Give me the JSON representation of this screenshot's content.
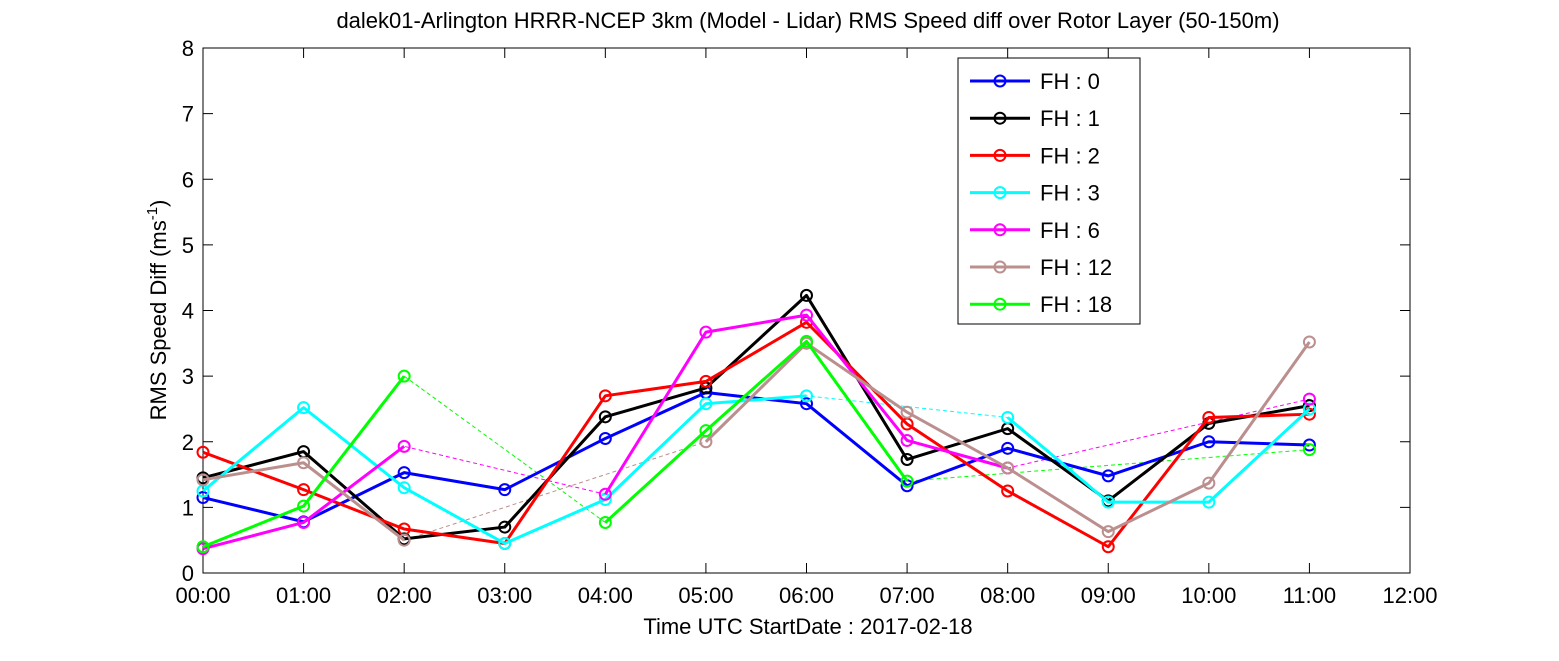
{
  "chart_data": {
    "type": "line",
    "title": "dalek01-Arlington HRRR-NCEP 3km (Model - Lidar) RMS Speed diff over Rotor Layer (50-150m)",
    "xlabel": "Time UTC    StartDate : 2017-02-18",
    "ylabel_main": "RMS Speed Diff (ms",
    "ylabel_sup": "-1",
    "ylabel_close": ")",
    "x_ticks": [
      "00:00",
      "01:00",
      "02:00",
      "03:00",
      "04:00",
      "05:00",
      "06:00",
      "07:00",
      "08:00",
      "09:00",
      "10:00",
      "11:00",
      "12:00"
    ],
    "y_ticks": [
      "0",
      "1",
      "2",
      "3",
      "4",
      "5",
      "6",
      "7",
      "8"
    ],
    "xlim": [
      0,
      12
    ],
    "ylim": [
      0,
      8
    ],
    "grid": false,
    "legend_position": "top-right",
    "series": [
      {
        "name": "FH : 0",
        "color": "#0000ff",
        "x": [
          0,
          1,
          2,
          3,
          4,
          5,
          6,
          7,
          8,
          9,
          10,
          11
        ],
        "y": [
          1.15,
          0.78,
          1.53,
          1.27,
          2.05,
          2.75,
          2.58,
          1.33,
          1.9,
          1.48,
          2.0,
          1.95
        ]
      },
      {
        "name": "FH : 1",
        "color": "#000000",
        "x": [
          0,
          1,
          2,
          3,
          4,
          5,
          6,
          7,
          8,
          9,
          10,
          11
        ],
        "y": [
          1.45,
          1.85,
          0.52,
          0.7,
          2.38,
          2.82,
          4.23,
          1.73,
          2.2,
          1.1,
          2.28,
          2.55
        ]
      },
      {
        "name": "FH : 2",
        "color": "#ff0000",
        "x": [
          0,
          1,
          2,
          3,
          4,
          5,
          6,
          7,
          8,
          9,
          10,
          11
        ],
        "y": [
          1.84,
          1.27,
          0.67,
          0.45,
          2.7,
          2.92,
          3.82,
          2.27,
          1.25,
          0.4,
          2.37,
          2.42
        ]
      },
      {
        "name": "FH : 3",
        "color": "#00ffff",
        "x": [
          0,
          1,
          2,
          3,
          4,
          5,
          6,
          7,
          8,
          9,
          10,
          11
        ],
        "y": [
          1.25,
          2.52,
          1.3,
          0.45,
          1.12,
          2.58,
          2.7,
          null,
          2.37,
          1.08,
          1.08,
          2.5
        ]
      },
      {
        "name": "FH : 6",
        "color": "#ff00ff",
        "x": [
          0,
          1,
          2,
          3,
          4,
          5,
          6,
          7,
          8,
          9,
          10,
          11
        ],
        "y": [
          0.37,
          0.77,
          1.93,
          null,
          1.2,
          3.67,
          3.93,
          2.02,
          1.6,
          null,
          null,
          2.65
        ]
      },
      {
        "name": "FH : 12",
        "color": "#bc8f8f",
        "x": [
          0,
          1,
          2,
          3,
          4,
          5,
          6,
          7,
          8,
          9,
          10,
          11
        ],
        "y": [
          1.42,
          1.68,
          0.5,
          null,
          null,
          2.0,
          3.5,
          2.45,
          1.6,
          0.63,
          1.37,
          3.52
        ]
      },
      {
        "name": "FH : 18",
        "color": "#00ff00",
        "x": [
          0,
          1,
          2,
          3,
          4,
          5,
          6,
          7,
          8,
          9,
          10,
          11
        ],
        "y": [
          0.4,
          1.02,
          3.0,
          null,
          0.77,
          2.17,
          3.53,
          1.4,
          null,
          null,
          null,
          1.88
        ]
      }
    ]
  }
}
